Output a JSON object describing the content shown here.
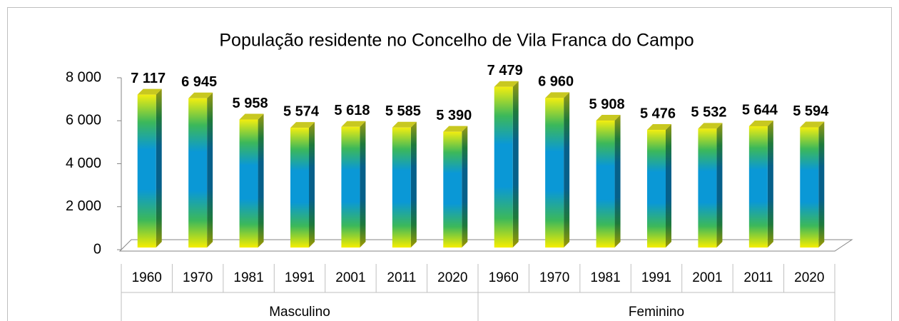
{
  "chart_data": {
    "type": "bar3d",
    "title": "População residente no Concelho de Vila Franca do Campo",
    "ylim": [
      0,
      8000
    ],
    "yticks": [
      0,
      {
        "value": 2000,
        "label": "2 000"
      },
      {
        "value": 4000,
        "label": "4 000"
      },
      {
        "value": 6000,
        "label": "6 000"
      },
      {
        "value": 8000,
        "label": "8 000"
      }
    ],
    "groups": [
      {
        "name": "Masculino",
        "categories": [
          "1960",
          "1970",
          "1981",
          "1991",
          "2001",
          "2011",
          "2020"
        ],
        "values": [
          7117,
          6945,
          5958,
          5574,
          5618,
          5585,
          5390
        ],
        "value_labels": [
          "7 117",
          "6 945",
          "5 958",
          "5 574",
          "5 618",
          "5 585",
          "5 390"
        ]
      },
      {
        "name": "Feminino",
        "categories": [
          "1960",
          "1970",
          "1981",
          "1991",
          "2001",
          "2011",
          "2020"
        ],
        "values": [
          7479,
          6960,
          5908,
          5476,
          5532,
          5644,
          5594
        ],
        "value_labels": [
          "7 479",
          "6 960",
          "5 908",
          "5 476",
          "5 532",
          "5 644",
          "5 594"
        ]
      }
    ]
  }
}
